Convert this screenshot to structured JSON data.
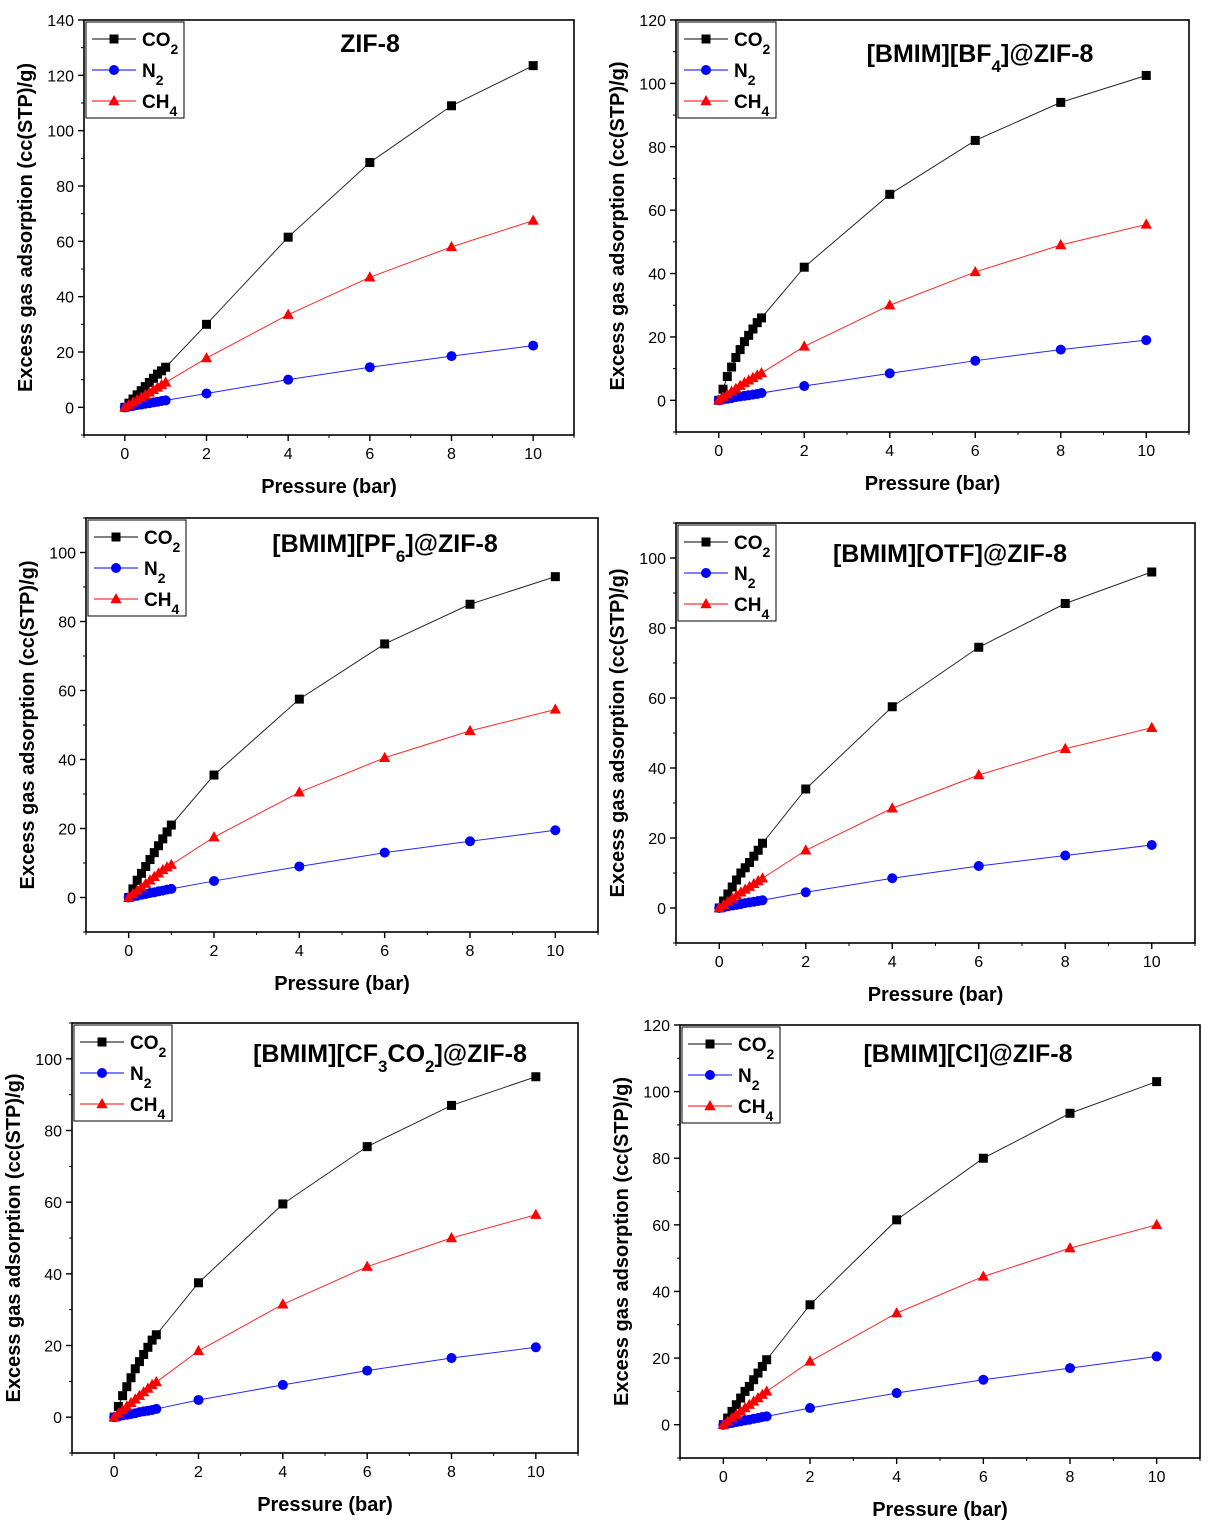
{
  "chart_data": [
    {
      "type": "line",
      "title": "ZIF-8",
      "xlabel": "Pressure (bar)",
      "ylabel": "Excess gas adsorption (cc(STP)/g)",
      "xlim": [
        -1,
        11
      ],
      "ylim": [
        -10,
        140
      ],
      "xticks": [
        0,
        2,
        4,
        6,
        8,
        10
      ],
      "yticks": [
        0,
        20,
        40,
        60,
        80,
        100,
        120,
        140
      ],
      "legend_position": "top-left",
      "series": [
        {
          "name": "CO2",
          "name_main": "CO",
          "name_sub": "2",
          "color": "#000000",
          "marker": "square",
          "x": [
            0,
            0.1,
            0.2,
            0.3,
            0.4,
            0.5,
            0.6,
            0.7,
            0.8,
            0.9,
            1,
            2,
            4,
            6,
            8,
            10
          ],
          "y": [
            0,
            1.5,
            3,
            4.5,
            6,
            7.5,
            9,
            10.5,
            12,
            13.2,
            14.5,
            30,
            61.5,
            88.5,
            109,
            123.5
          ]
        },
        {
          "name": "N2",
          "name_main": "N",
          "name_sub": "2",
          "color": "#0000ff",
          "marker": "circle",
          "x": [
            0,
            0.1,
            0.2,
            0.3,
            0.4,
            0.5,
            0.6,
            0.7,
            0.8,
            0.9,
            1,
            2,
            4,
            6,
            8,
            10
          ],
          "y": [
            0,
            0.3,
            0.5,
            0.8,
            1.0,
            1.3,
            1.5,
            1.8,
            2.0,
            2.3,
            2.5,
            5,
            10,
            14.5,
            18.5,
            22.3
          ]
        },
        {
          "name": "CH4",
          "name_main": "CH",
          "name_sub": "4",
          "color": "#ff0000",
          "marker": "triangle",
          "x": [
            0,
            0.1,
            0.2,
            0.3,
            0.4,
            0.5,
            0.6,
            0.7,
            0.8,
            0.9,
            1,
            2,
            4,
            6,
            8,
            10
          ],
          "y": [
            0,
            0.9,
            1.8,
            2.7,
            3.6,
            4.5,
            5.4,
            6.3,
            7.2,
            8.1,
            9,
            17.8,
            33.5,
            47,
            58,
            67.5
          ]
        }
      ]
    },
    {
      "type": "line",
      "title": "[BMIM][BF4]@ZIF-8",
      "title_parts": [
        "[BMIM][BF",
        "4",
        "]@ZIF-8"
      ],
      "xlabel": "Pressure (bar)",
      "ylabel": "Excess gas adsorption (cc(STP)/g)",
      "xlim": [
        -1,
        11
      ],
      "ylim": [
        -10,
        120
      ],
      "xticks": [
        0,
        2,
        4,
        6,
        8,
        10
      ],
      "yticks": [
        0,
        20,
        40,
        60,
        80,
        100,
        120
      ],
      "legend_position": "top-left",
      "series": [
        {
          "name": "CO2",
          "name_main": "CO",
          "name_sub": "2",
          "color": "#000000",
          "marker": "square",
          "x": [
            0,
            0.1,
            0.2,
            0.3,
            0.4,
            0.5,
            0.6,
            0.7,
            0.8,
            0.9,
            1,
            2,
            4,
            6,
            8,
            10
          ],
          "y": [
            0,
            3.5,
            7.5,
            10.5,
            13.5,
            16,
            18.5,
            20.5,
            22.5,
            24.5,
            26,
            42,
            65,
            82,
            94,
            102.5
          ]
        },
        {
          "name": "N2",
          "name_main": "N",
          "name_sub": "2",
          "color": "#0000ff",
          "marker": "circle",
          "x": [
            0,
            0.1,
            0.2,
            0.3,
            0.4,
            0.5,
            0.6,
            0.7,
            0.8,
            0.9,
            1,
            2,
            4,
            6,
            8,
            10
          ],
          "y": [
            0,
            0.3,
            0.5,
            0.7,
            1.0,
            1.2,
            1.4,
            1.6,
            1.8,
            2.0,
            2.3,
            4.5,
            8.5,
            12.5,
            16,
            19
          ]
        },
        {
          "name": "CH4",
          "name_main": "CH",
          "name_sub": "4",
          "color": "#ff0000",
          "marker": "triangle",
          "x": [
            0,
            0.1,
            0.2,
            0.3,
            0.4,
            0.5,
            0.6,
            0.7,
            0.8,
            0.9,
            1,
            2,
            4,
            6,
            8,
            10
          ],
          "y": [
            0,
            1.0,
            1.9,
            2.8,
            3.7,
            4.6,
            5.5,
            6.3,
            7.1,
            7.9,
            8.6,
            17,
            30,
            40.5,
            49,
            55.5
          ]
        }
      ]
    },
    {
      "type": "line",
      "title": "[BMIM][PF6]@ZIF-8",
      "title_parts": [
        "[BMIM][PF",
        "6",
        "]@ZIF-8"
      ],
      "xlabel": "Pressure (bar)",
      "ylabel": "Excess gas adsorption (cc(STP)/g)",
      "xlim": [
        -1,
        11
      ],
      "ylim": [
        -10,
        110
      ],
      "xticks": [
        0,
        2,
        4,
        6,
        8,
        10
      ],
      "yticks": [
        0,
        20,
        40,
        60,
        80,
        100
      ],
      "legend_position": "top-left",
      "series": [
        {
          "name": "CO2",
          "name_main": "CO",
          "name_sub": "2",
          "color": "#000000",
          "marker": "square",
          "x": [
            0,
            0.1,
            0.2,
            0.3,
            0.4,
            0.5,
            0.6,
            0.7,
            0.8,
            0.9,
            1,
            2,
            4,
            6,
            8,
            10
          ],
          "y": [
            0,
            2.5,
            5,
            7,
            9,
            11,
            13,
            15,
            17,
            19,
            21,
            35.5,
            57.5,
            73.5,
            85,
            93
          ]
        },
        {
          "name": "N2",
          "name_main": "N",
          "name_sub": "2",
          "color": "#0000ff",
          "marker": "circle",
          "x": [
            0,
            0.1,
            0.2,
            0.3,
            0.4,
            0.5,
            0.6,
            0.7,
            0.8,
            0.9,
            1,
            2,
            4,
            6,
            8,
            10
          ],
          "y": [
            0,
            0.3,
            0.5,
            0.8,
            1.0,
            1.3,
            1.5,
            1.8,
            2.0,
            2.3,
            2.5,
            4.8,
            9,
            13,
            16.3,
            19.5
          ]
        },
        {
          "name": "CH4",
          "name_main": "CH",
          "name_sub": "4",
          "color": "#ff0000",
          "marker": "triangle",
          "x": [
            0,
            0.1,
            0.2,
            0.3,
            0.4,
            0.5,
            0.6,
            0.7,
            0.8,
            0.9,
            1,
            2,
            4,
            6,
            8,
            10
          ],
          "y": [
            0,
            1.0,
            2.0,
            3.0,
            4.0,
            5.0,
            6.0,
            7.0,
            8.0,
            8.8,
            9.5,
            17.5,
            30.5,
            40.5,
            48.3,
            54.5
          ]
        }
      ]
    },
    {
      "type": "line",
      "title": "[BMIM][OTF]@ZIF-8",
      "xlabel": "Pressure (bar)",
      "ylabel": "Excess gas adsorption (cc(STP)/g)",
      "xlim": [
        -1,
        11
      ],
      "ylim": [
        -10,
        110
      ],
      "xticks": [
        0,
        2,
        4,
        6,
        8,
        10
      ],
      "yticks": [
        0,
        20,
        40,
        60,
        80,
        100
      ],
      "legend_position": "top-left",
      "series": [
        {
          "name": "CO2",
          "name_main": "CO",
          "name_sub": "2",
          "color": "#000000",
          "marker": "square",
          "x": [
            0,
            0.1,
            0.2,
            0.3,
            0.4,
            0.5,
            0.6,
            0.7,
            0.8,
            0.9,
            1,
            2,
            4,
            6,
            8,
            10
          ],
          "y": [
            0,
            2,
            4,
            6,
            8,
            10,
            11.5,
            13,
            14.8,
            16.5,
            18.5,
            34,
            57.5,
            74.5,
            87,
            96
          ]
        },
        {
          "name": "N2",
          "name_main": "N",
          "name_sub": "2",
          "color": "#0000ff",
          "marker": "circle",
          "x": [
            0,
            0.1,
            0.2,
            0.3,
            0.4,
            0.5,
            0.6,
            0.7,
            0.8,
            0.9,
            1,
            2,
            4,
            6,
            8,
            10
          ],
          "y": [
            0,
            0.2,
            0.5,
            0.7,
            0.9,
            1.1,
            1.4,
            1.6,
            1.8,
            2.0,
            2.2,
            4.5,
            8.5,
            12,
            15,
            18
          ]
        },
        {
          "name": "CH4",
          "name_main": "CH",
          "name_sub": "4",
          "color": "#ff0000",
          "marker": "triangle",
          "x": [
            0,
            0.1,
            0.2,
            0.3,
            0.4,
            0.5,
            0.6,
            0.7,
            0.8,
            0.9,
            1,
            2,
            4,
            6,
            8,
            10
          ],
          "y": [
            0,
            0.9,
            1.8,
            2.7,
            3.6,
            4.5,
            5.3,
            6.1,
            6.9,
            7.7,
            8.5,
            16.5,
            28.5,
            38,
            45.5,
            51.5
          ]
        }
      ]
    },
    {
      "type": "line",
      "title": "[BMIM][CF3CO2]@ZIF-8",
      "title_parts": [
        "[BMIM][CF",
        "3",
        "CO",
        "2",
        "]@ZIF-8"
      ],
      "xlabel": "Pressure (bar)",
      "ylabel": "Excess gas adsorption (cc(STP)/g)",
      "xlim": [
        -1,
        11
      ],
      "ylim": [
        -10,
        110
      ],
      "xticks": [
        0,
        2,
        4,
        6,
        8,
        10
      ],
      "yticks": [
        0,
        20,
        40,
        60,
        80,
        100
      ],
      "legend_position": "top-left",
      "series": [
        {
          "name": "CO2",
          "name_main": "CO",
          "name_sub": "2",
          "color": "#000000",
          "marker": "square",
          "x": [
            0,
            0.1,
            0.2,
            0.3,
            0.4,
            0.5,
            0.6,
            0.7,
            0.8,
            0.9,
            1,
            2,
            4,
            6,
            8,
            10
          ],
          "y": [
            0,
            3,
            6,
            8.5,
            11,
            13.5,
            15.5,
            17.5,
            19.5,
            21.5,
            23,
            37.5,
            59.5,
            75.5,
            87,
            95
          ]
        },
        {
          "name": "N2",
          "name_main": "N",
          "name_sub": "2",
          "color": "#0000ff",
          "marker": "circle",
          "x": [
            0,
            0.1,
            0.2,
            0.3,
            0.4,
            0.5,
            0.6,
            0.7,
            0.8,
            0.9,
            1,
            2,
            4,
            6,
            8,
            10
          ],
          "y": [
            0,
            0.2,
            0.5,
            0.7,
            0.9,
            1.1,
            1.4,
            1.6,
            1.8,
            2.0,
            2.3,
            4.8,
            9,
            13,
            16.5,
            19.5
          ]
        },
        {
          "name": "CH4",
          "name_main": "CH",
          "name_sub": "4",
          "color": "#ff0000",
          "marker": "triangle",
          "x": [
            0,
            0.1,
            0.2,
            0.3,
            0.4,
            0.5,
            0.6,
            0.7,
            0.8,
            0.9,
            1,
            2,
            4,
            6,
            8,
            10
          ],
          "y": [
            0,
            1.0,
            2.0,
            3.0,
            4.0,
            5.0,
            6.0,
            7.0,
            8.0,
            9.0,
            9.8,
            18.5,
            31.5,
            42,
            50,
            56.5
          ]
        }
      ]
    },
    {
      "type": "line",
      "title": "[BMIM][Cl]@ZIF-8",
      "xlabel": "Pressure (bar)",
      "ylabel": "Excess gas adsorption (cc(STP)/g)",
      "xlim": [
        -1,
        11
      ],
      "ylim": [
        -10,
        120
      ],
      "xticks": [
        0,
        2,
        4,
        6,
        8,
        10
      ],
      "yticks": [
        0,
        20,
        40,
        60,
        80,
        100,
        120
      ],
      "legend_position": "top-left",
      "series": [
        {
          "name": "CO2",
          "name_main": "CO",
          "name_sub": "2",
          "color": "#000000",
          "marker": "square",
          "x": [
            0,
            0.1,
            0.2,
            0.3,
            0.4,
            0.5,
            0.6,
            0.7,
            0.8,
            0.9,
            1,
            2,
            4,
            6,
            8,
            10
          ],
          "y": [
            0,
            2,
            4,
            6,
            8,
            10,
            11.5,
            13.5,
            15.5,
            17.5,
            19.5,
            36,
            61.5,
            80,
            93.5,
            103
          ]
        },
        {
          "name": "N2",
          "name_main": "N",
          "name_sub": "2",
          "color": "#0000ff",
          "marker": "circle",
          "x": [
            0,
            0.1,
            0.2,
            0.3,
            0.4,
            0.5,
            0.6,
            0.7,
            0.8,
            0.9,
            1,
            2,
            4,
            6,
            8,
            10
          ],
          "y": [
            0,
            0.3,
            0.5,
            0.8,
            1.0,
            1.3,
            1.5,
            1.8,
            2.0,
            2.3,
            2.5,
            5,
            9.5,
            13.5,
            17,
            20.5
          ]
        },
        {
          "name": "CH4",
          "name_main": "CH",
          "name_sub": "4",
          "color": "#ff0000",
          "marker": "triangle",
          "x": [
            0,
            0.1,
            0.2,
            0.3,
            0.4,
            0.5,
            0.6,
            0.7,
            0.8,
            0.9,
            1,
            2,
            4,
            6,
            8,
            10
          ],
          "y": [
            0,
            1.0,
            2.0,
            3.0,
            4.0,
            5.0,
            6.0,
            7.0,
            8.0,
            9.0,
            10,
            19,
            33.5,
            44.5,
            53,
            60
          ]
        }
      ]
    }
  ]
}
